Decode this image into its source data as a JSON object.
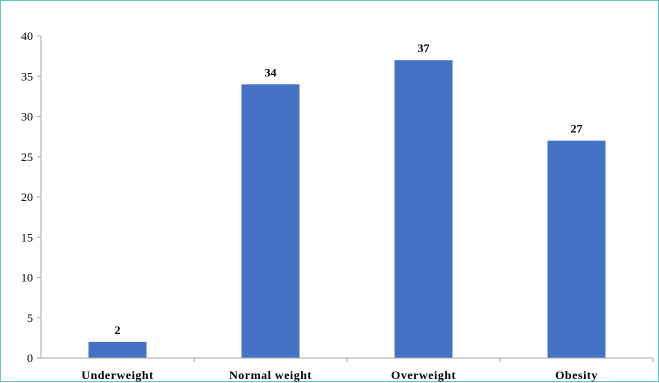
{
  "chart_data": {
    "type": "bar",
    "categories": [
      "Underweight",
      "Normal weight",
      "Overweight",
      "Obesity"
    ],
    "values": [
      2,
      34,
      37,
      27
    ],
    "data_labels": [
      "2",
      "34",
      "37",
      "27"
    ],
    "yticks": [
      "0",
      "5",
      "10",
      "15",
      "20",
      "25",
      "30",
      "35",
      "40"
    ],
    "ylim": [
      0,
      40
    ],
    "grid": false,
    "legend": "none",
    "bar_color": "#4472c4",
    "axis_color": "#a6a6a6",
    "frame_color": "#5fc7c2"
  }
}
